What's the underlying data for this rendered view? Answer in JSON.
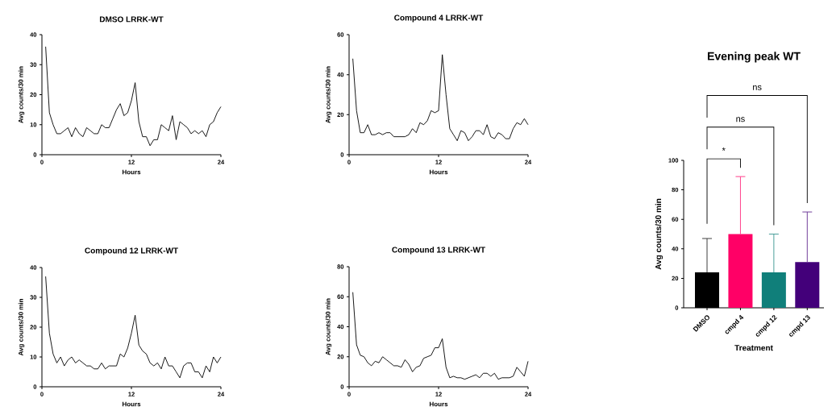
{
  "chart_data": [
    {
      "type": "line",
      "title": "DMSO LRRK-WT",
      "xlabel": "Hours",
      "ylabel": "Avg counts/30 min",
      "color": "#000000",
      "xlim": [
        0,
        24
      ],
      "xticks": [
        0,
        12,
        24
      ],
      "ylim": [
        0,
        40
      ],
      "yticks": [
        0,
        10,
        20,
        30,
        40
      ],
      "x": [
        0.5,
        1,
        1.5,
        2,
        2.5,
        3,
        3.5,
        4,
        4.5,
        5,
        5.5,
        6,
        6.5,
        7,
        7.5,
        8,
        8.5,
        9,
        9.5,
        10,
        10.5,
        11,
        11.5,
        12,
        12.5,
        13,
        13.5,
        14,
        14.5,
        15,
        15.5,
        16,
        16.5,
        17,
        17.5,
        18,
        18.5,
        19,
        19.5,
        20,
        20.5,
        21,
        21.5,
        22,
        22.5,
        23,
        23.5,
        24
      ],
      "values": [
        36,
        14,
        10,
        7,
        7,
        8,
        9,
        6,
        9,
        7,
        6,
        9,
        8,
        7,
        7,
        10,
        9,
        9,
        12,
        15,
        17,
        13,
        14,
        18,
        24,
        11,
        6,
        6,
        3,
        5,
        5,
        10,
        9,
        8,
        13,
        5,
        11,
        10,
        9,
        7,
        8,
        7,
        8,
        6,
        10,
        11,
        14,
        16
      ]
    },
    {
      "type": "line",
      "title": "Compound 4 LRRK-WT",
      "xlabel": "Hours",
      "ylabel": "Avg counts/30 min",
      "color": "#000000",
      "xlim": [
        0,
        24
      ],
      "xticks": [
        0,
        12,
        24
      ],
      "ylim": [
        0,
        60
      ],
      "yticks": [
        0,
        20,
        40,
        60
      ],
      "x": [
        0.5,
        1,
        1.5,
        2,
        2.5,
        3,
        3.5,
        4,
        4.5,
        5,
        5.5,
        6,
        6.5,
        7,
        7.5,
        8,
        8.5,
        9,
        9.5,
        10,
        10.5,
        11,
        11.5,
        12,
        12.5,
        13,
        13.5,
        14,
        14.5,
        15,
        15.5,
        16,
        16.5,
        17,
        17.5,
        18,
        18.5,
        19,
        19.5,
        20,
        20.5,
        21,
        21.5,
        22,
        22.5,
        23,
        23.5,
        24
      ],
      "values": [
        48,
        22,
        11,
        11,
        15,
        10,
        10,
        11,
        10,
        11,
        11,
        9,
        9,
        9,
        9,
        10,
        13,
        11,
        16,
        15,
        17,
        22,
        21,
        22,
        50,
        30,
        13,
        10,
        7,
        12,
        11,
        7,
        9,
        12,
        12,
        10,
        15,
        9,
        8,
        11,
        10,
        8,
        8,
        13,
        16,
        15,
        18,
        15
      ]
    },
    {
      "type": "line",
      "title": "Compound 12 LRRK-WT",
      "xlabel": "Hours",
      "ylabel": "Avg counts/30 min",
      "color": "#000000",
      "xlim": [
        0,
        24
      ],
      "xticks": [
        0,
        12,
        24
      ],
      "ylim": [
        0,
        40
      ],
      "yticks": [
        0,
        10,
        20,
        30,
        40
      ],
      "x": [
        0.5,
        1,
        1.5,
        2,
        2.5,
        3,
        3.5,
        4,
        4.5,
        5,
        5.5,
        6,
        6.5,
        7,
        7.5,
        8,
        8.5,
        9,
        9.5,
        10,
        10.5,
        11,
        11.5,
        12,
        12.5,
        13,
        13.5,
        14,
        14.5,
        15,
        15.5,
        16,
        16.5,
        17,
        17.5,
        18,
        18.5,
        19,
        19.5,
        20,
        20.5,
        21,
        21.5,
        22,
        22.5,
        23,
        23.5,
        24
      ],
      "values": [
        37,
        18,
        11,
        8,
        10,
        7,
        9,
        10,
        8,
        9,
        8,
        7,
        7,
        6,
        6,
        8,
        6,
        7,
        7,
        7,
        11,
        10,
        13,
        18,
        24,
        14,
        12,
        11,
        8,
        7,
        8,
        6,
        10,
        7,
        7,
        5,
        3,
        7,
        8,
        8,
        5,
        5,
        3,
        7,
        5,
        10,
        8,
        10
      ]
    },
    {
      "type": "line",
      "title": "Compound 13 LRRK-WT",
      "xlabel": "Hours",
      "ylabel": "Avg counts/30 min",
      "color": "#000000",
      "xlim": [
        0,
        24
      ],
      "xticks": [
        0,
        12,
        24
      ],
      "ylim": [
        0,
        80
      ],
      "yticks": [
        0,
        20,
        40,
        60,
        80
      ],
      "x": [
        0.5,
        1,
        1.5,
        2,
        2.5,
        3,
        3.5,
        4,
        4.5,
        5,
        5.5,
        6,
        6.5,
        7,
        7.5,
        8,
        8.5,
        9,
        9.5,
        10,
        10.5,
        11,
        11.5,
        12,
        12.5,
        13,
        13.5,
        14,
        14.5,
        15,
        15.5,
        16,
        16.5,
        17,
        17.5,
        18,
        18.5,
        19,
        19.5,
        20,
        20.5,
        21,
        21.5,
        22,
        22.5,
        23,
        23.5,
        24
      ],
      "values": [
        63,
        28,
        21,
        20,
        16,
        14,
        17,
        16,
        20,
        18,
        16,
        14,
        14,
        13,
        18,
        15,
        10,
        13,
        14,
        19,
        20,
        21,
        26,
        26,
        32,
        13,
        6,
        7,
        6,
        6,
        5,
        6,
        7,
        8,
        6,
        9,
        9,
        7,
        9,
        5,
        6,
        6,
        6,
        7,
        13,
        10,
        7,
        17
      ]
    },
    {
      "type": "bar",
      "title": "Evening peak WT",
      "xlabel": "Treatment",
      "ylabel": "Avg counts/30 min",
      "categories": [
        "DMSO",
        "cmpd 4",
        "cmpd 12",
        "cmpd 13"
      ],
      "values": [
        24,
        50,
        24,
        31
      ],
      "colors": [
        "#000000",
        "#ff0066",
        "#107f7a",
        "#43007a"
      ],
      "errors": [
        [
          24,
          47
        ],
        [
          50,
          89
        ],
        [
          24,
          50
        ],
        [
          31,
          65
        ]
      ],
      "ylim": [
        0,
        100
      ],
      "yticks": [
        0,
        20,
        40,
        60,
        80,
        100
      ],
      "annotations": [
        "*",
        "ns",
        "ns"
      ]
    }
  ]
}
